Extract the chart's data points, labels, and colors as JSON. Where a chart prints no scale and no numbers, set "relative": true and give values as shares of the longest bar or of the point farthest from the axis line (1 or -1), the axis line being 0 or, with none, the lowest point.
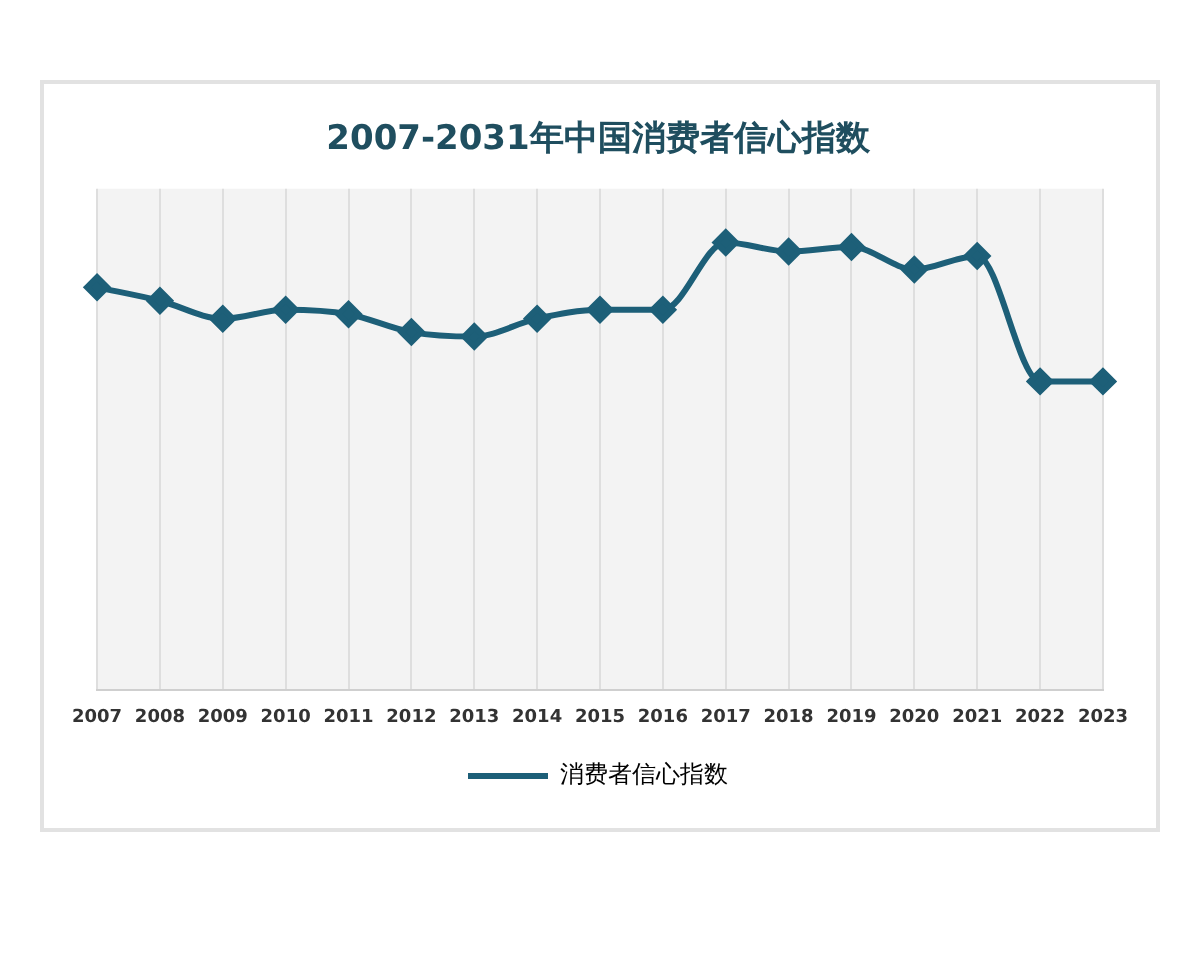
{
  "chart_data": {
    "type": "line",
    "title": "2007-2031年中国消费者信心指数",
    "relative": true,
    "categories": [
      "2007",
      "2008",
      "2009",
      "2010",
      "2011",
      "2012",
      "2013",
      "2014",
      "2015",
      "2016",
      "2017",
      "2018",
      "2019",
      "2020",
      "2021",
      "2022",
      "2023"
    ],
    "series": [
      {
        "name": "消费者信心指数",
        "color": "#1d5f78",
        "values": [
          0.9,
          0.87,
          0.83,
          0.85,
          0.84,
          0.8,
          0.79,
          0.83,
          0.85,
          0.85,
          1,
          0.98,
          0.99,
          0.94,
          0.97,
          0.69,
          0.69
        ]
      }
    ],
    "grid": "x",
    "legend": "bottom",
    "marker": "diamond",
    "line_style": "solid"
  }
}
